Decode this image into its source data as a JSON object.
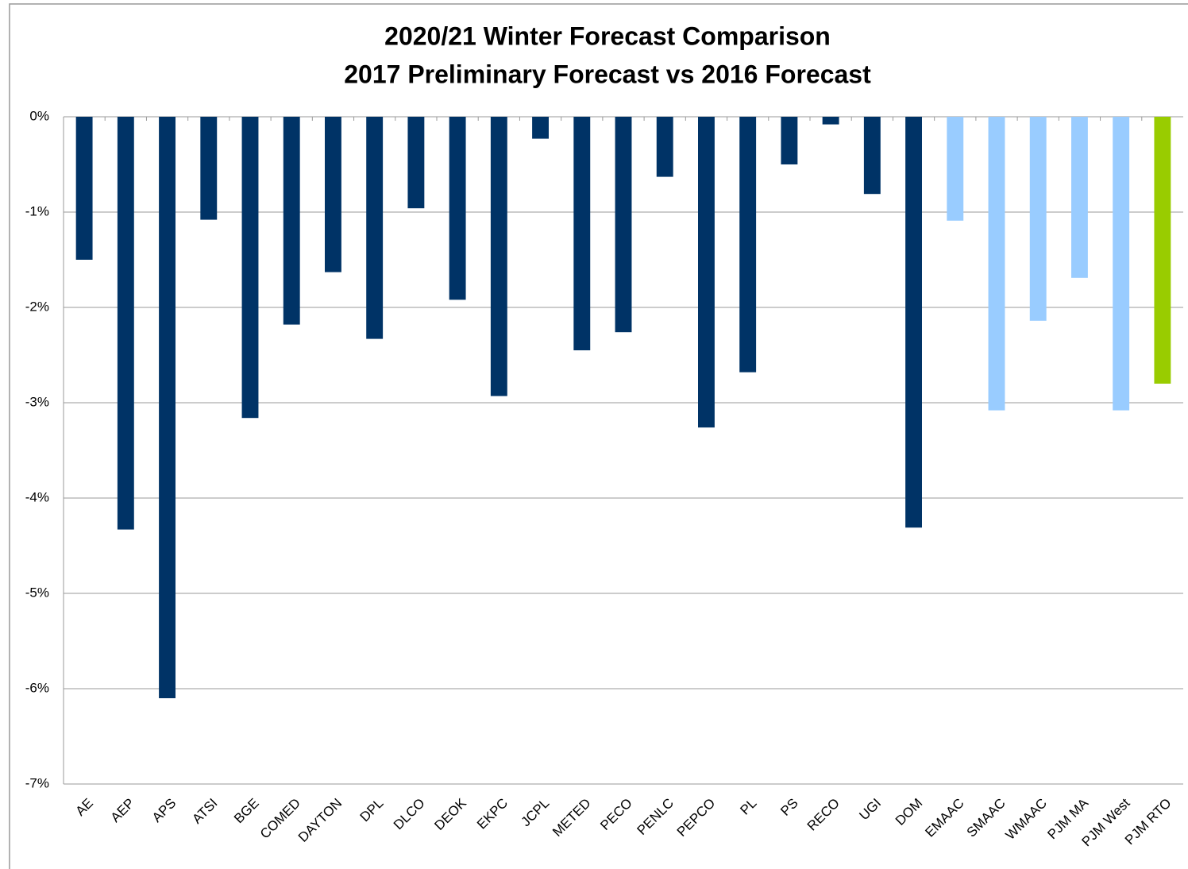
{
  "chart_data": {
    "type": "bar",
    "title": "2020/21 Winter Forecast Comparison",
    "subtitle": "2017 Preliminary Forecast vs 2016 Forecast",
    "categories": [
      "AE",
      "AEP",
      "APS",
      "ATSI",
      "BGE",
      "COMED",
      "DAYTON",
      "DPL",
      "DLCO",
      "DEOK",
      "EKPC",
      "JCPL",
      "METED",
      "PECO",
      "PENLC",
      "PEPCO",
      "PL",
      "PS",
      "RECO",
      "UGI",
      "DOM",
      "EMAAC",
      "SMAAC",
      "WMAAC",
      "PJM MA",
      "PJM West",
      "PJM RTO"
    ],
    "values": [
      -1.5,
      -4.33,
      -6.1,
      -1.08,
      -3.16,
      -2.18,
      -1.63,
      -2.33,
      -0.96,
      -1.92,
      -2.93,
      -0.23,
      -2.45,
      -2.26,
      -0.63,
      -3.26,
      -2.68,
      -0.5,
      -0.08,
      -0.81,
      -4.31,
      -1.09,
      -3.08,
      -2.14,
      -1.69,
      -3.08,
      -2.8
    ],
    "colors": [
      "#003366",
      "#003366",
      "#003366",
      "#003366",
      "#003366",
      "#003366",
      "#003366",
      "#003366",
      "#003366",
      "#003366",
      "#003366",
      "#003366",
      "#003366",
      "#003366",
      "#003366",
      "#003366",
      "#003366",
      "#003366",
      "#003366",
      "#003366",
      "#003366",
      "#99ccff",
      "#99ccff",
      "#99ccff",
      "#99ccff",
      "#99ccff",
      "#99cc00"
    ],
    "ylim": [
      -7,
      0
    ],
    "yticks": [
      {
        "value": 0,
        "label": "0%"
      },
      {
        "value": -1,
        "label": "-1%"
      },
      {
        "value": -2,
        "label": "-2%"
      },
      {
        "value": -3,
        "label": "-3%"
      },
      {
        "value": -4,
        "label": "-4%"
      },
      {
        "value": -5,
        "label": "-5%"
      },
      {
        "value": -6,
        "label": "-6%"
      },
      {
        "value": -7,
        "label": "-7%"
      }
    ],
    "grid": true
  }
}
